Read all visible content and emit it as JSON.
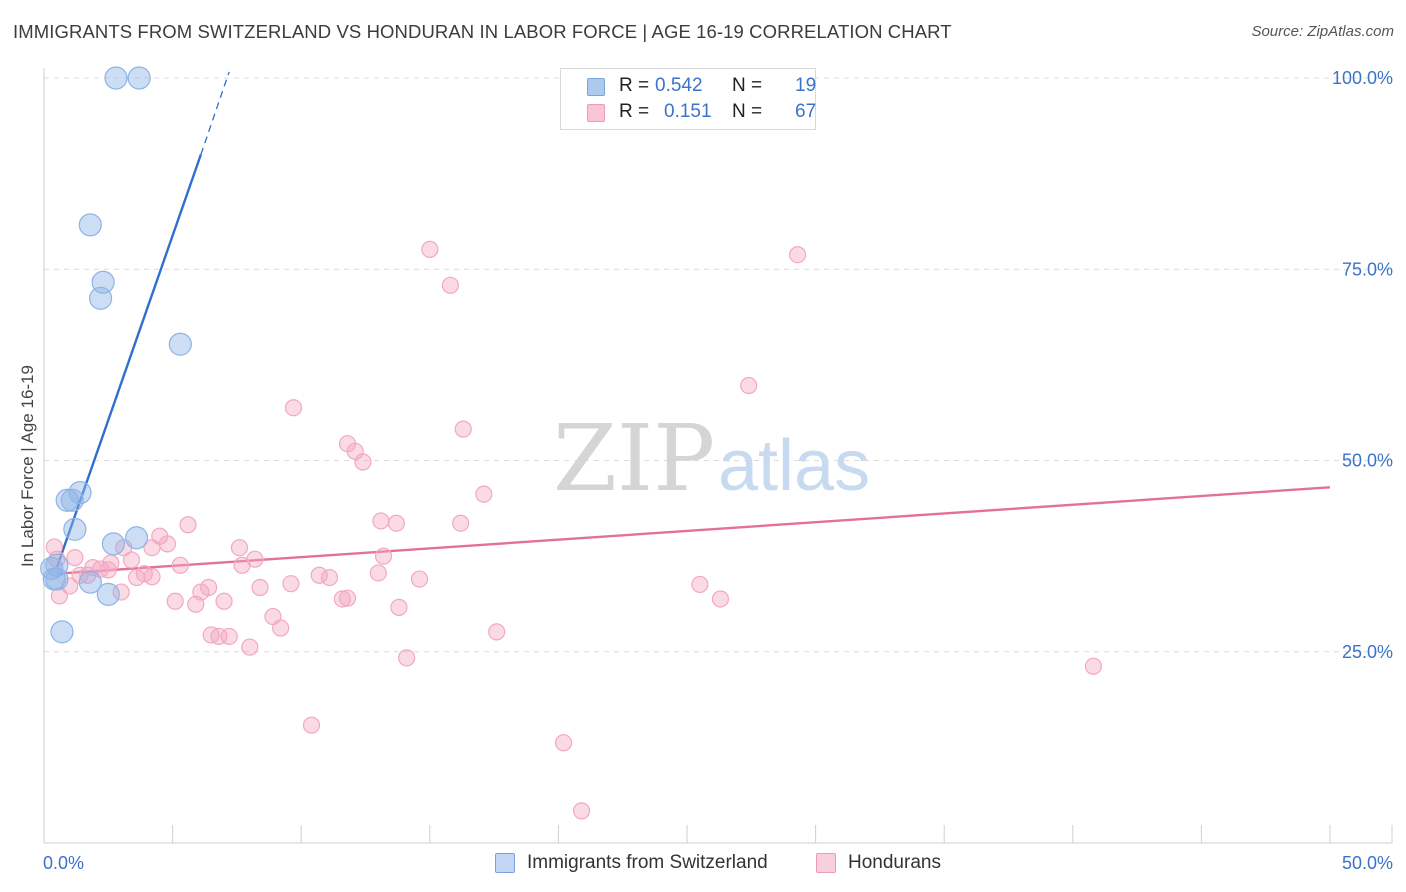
{
  "header": {
    "title": "IMMIGRANTS FROM SWITZERLAND VS HONDURAN IN LABOR FORCE | AGE 16-19 CORRELATION CHART",
    "source": "Source: ZipAtlas.com"
  },
  "watermark": {
    "zip": "ZIP",
    "atlas": "atlas"
  },
  "legend": {
    "rows": [
      {
        "r_label": "R =",
        "r_value": "0.542",
        "n_label": "N =",
        "n_value": "19",
        "color": "#adc9ee",
        "border": "#7aa3dc"
      },
      {
        "r_label": "R =",
        "r_value": "0.151",
        "n_label": "N =",
        "n_value": "67",
        "color": "#f8c6d6",
        "border": "#ee9cb6"
      }
    ]
  },
  "bottom_legend": [
    {
      "label": "Immigrants from Switzerland",
      "color": "#c2d7f3",
      "border": "#7aa3dc"
    },
    {
      "label": "Hondurans",
      "color": "#f9cfdc",
      "border": "#ee9cb6"
    }
  ],
  "chart_data": {
    "type": "scatter",
    "title": "IMMIGRANTS FROM SWITZERLAND VS HONDURAN IN LABOR FORCE | AGE 16-19 CORRELATION CHART",
    "xlabel": "",
    "ylabel": "In Labor Force | Age 16-19",
    "xlim": [
      0,
      50
    ],
    "ylim": [
      0,
      100
    ],
    "x_tick_labels": {
      "0": "0.0%",
      "50": "50.0%"
    },
    "y_tick_labels": {
      "25": "25.0%",
      "50": "50.0%",
      "75": "75.0%",
      "100": "100.0%"
    },
    "grid": true,
    "series": [
      {
        "name": "Immigrants from Switzerland",
        "color": "#8db4e6",
        "line_color": "#2f6fcf",
        "trend": {
          "x": [
            0.5,
            6.1
          ],
          "y": [
            36.0,
            90.0
          ],
          "dash_to": [
            7.2,
            100.8
          ]
        },
        "points": [
          {
            "x": 2.8,
            "y": 100.0
          },
          {
            "x": 3.7,
            "y": 100.0
          },
          {
            "x": 1.8,
            "y": 80.8
          },
          {
            "x": 2.3,
            "y": 73.3
          },
          {
            "x": 2.2,
            "y": 71.2
          },
          {
            "x": 5.3,
            "y": 65.2
          },
          {
            "x": 1.4,
            "y": 45.8
          },
          {
            "x": 0.9,
            "y": 44.8
          },
          {
            "x": 1.1,
            "y": 44.8
          },
          {
            "x": 1.2,
            "y": 41.0
          },
          {
            "x": 3.6,
            "y": 39.9
          },
          {
            "x": 2.7,
            "y": 39.1
          },
          {
            "x": 0.5,
            "y": 36.3
          },
          {
            "x": 0.3,
            "y": 35.9
          },
          {
            "x": 0.4,
            "y": 34.5
          },
          {
            "x": 0.5,
            "y": 34.5
          },
          {
            "x": 1.8,
            "y": 34.1
          },
          {
            "x": 2.5,
            "y": 32.5
          },
          {
            "x": 0.7,
            "y": 27.6
          }
        ]
      },
      {
        "name": "Hondurans",
        "color": "#f3a8c0",
        "line_color": "#e4709a",
        "trend": {
          "x": [
            0.5,
            50.0
          ],
          "y": [
            35.2,
            46.5
          ]
        },
        "points": [
          {
            "x": 15.0,
            "y": 77.6
          },
          {
            "x": 15.8,
            "y": 72.9
          },
          {
            "x": 29.3,
            "y": 76.9
          },
          {
            "x": 27.4,
            "y": 59.8
          },
          {
            "x": 9.7,
            "y": 56.9
          },
          {
            "x": 16.3,
            "y": 54.1
          },
          {
            "x": 11.8,
            "y": 52.2
          },
          {
            "x": 12.1,
            "y": 51.2
          },
          {
            "x": 12.4,
            "y": 49.8
          },
          {
            "x": 17.1,
            "y": 45.6
          },
          {
            "x": 13.1,
            "y": 42.1
          },
          {
            "x": 13.7,
            "y": 41.8
          },
          {
            "x": 16.2,
            "y": 41.8
          },
          {
            "x": 5.6,
            "y": 41.6
          },
          {
            "x": 4.5,
            "y": 40.1
          },
          {
            "x": 4.8,
            "y": 39.1
          },
          {
            "x": 4.2,
            "y": 38.6
          },
          {
            "x": 7.6,
            "y": 38.6
          },
          {
            "x": 3.1,
            "y": 38.6
          },
          {
            "x": 0.4,
            "y": 38.7
          },
          {
            "x": 1.2,
            "y": 37.3
          },
          {
            "x": 0.5,
            "y": 37.1
          },
          {
            "x": 8.2,
            "y": 37.1
          },
          {
            "x": 13.2,
            "y": 37.5
          },
          {
            "x": 3.4,
            "y": 37.0
          },
          {
            "x": 2.6,
            "y": 36.6
          },
          {
            "x": 5.3,
            "y": 36.3
          },
          {
            "x": 7.7,
            "y": 36.3
          },
          {
            "x": 1.9,
            "y": 36.0
          },
          {
            "x": 2.5,
            "y": 35.7
          },
          {
            "x": 2.2,
            "y": 35.8
          },
          {
            "x": 3.9,
            "y": 35.2
          },
          {
            "x": 1.4,
            "y": 35.0
          },
          {
            "x": 1.7,
            "y": 35.0
          },
          {
            "x": 4.2,
            "y": 34.8
          },
          {
            "x": 10.7,
            "y": 35.0
          },
          {
            "x": 11.1,
            "y": 34.7
          },
          {
            "x": 3.6,
            "y": 34.7
          },
          {
            "x": 13.0,
            "y": 35.3
          },
          {
            "x": 14.6,
            "y": 34.5
          },
          {
            "x": 9.6,
            "y": 33.9
          },
          {
            "x": 25.5,
            "y": 33.8
          },
          {
            "x": 6.4,
            "y": 33.4
          },
          {
            "x": 8.4,
            "y": 33.4
          },
          {
            "x": 1.0,
            "y": 33.6
          },
          {
            "x": 3.0,
            "y": 32.8
          },
          {
            "x": 6.1,
            "y": 32.8
          },
          {
            "x": 0.6,
            "y": 32.3
          },
          {
            "x": 26.3,
            "y": 31.9
          },
          {
            "x": 11.6,
            "y": 31.9
          },
          {
            "x": 11.8,
            "y": 32.0
          },
          {
            "x": 5.1,
            "y": 31.6
          },
          {
            "x": 7.0,
            "y": 31.6
          },
          {
            "x": 5.9,
            "y": 31.2
          },
          {
            "x": 13.8,
            "y": 30.8
          },
          {
            "x": 8.9,
            "y": 29.6
          },
          {
            "x": 9.2,
            "y": 28.1
          },
          {
            "x": 17.6,
            "y": 27.6
          },
          {
            "x": 6.5,
            "y": 27.2
          },
          {
            "x": 6.8,
            "y": 27.0
          },
          {
            "x": 7.2,
            "y": 27.0
          },
          {
            "x": 8.0,
            "y": 25.6
          },
          {
            "x": 14.1,
            "y": 24.2
          },
          {
            "x": 40.8,
            "y": 23.1
          },
          {
            "x": 10.4,
            "y": 15.4
          },
          {
            "x": 20.2,
            "y": 13.1
          },
          {
            "x": 20.9,
            "y": 4.2
          }
        ]
      }
    ]
  }
}
